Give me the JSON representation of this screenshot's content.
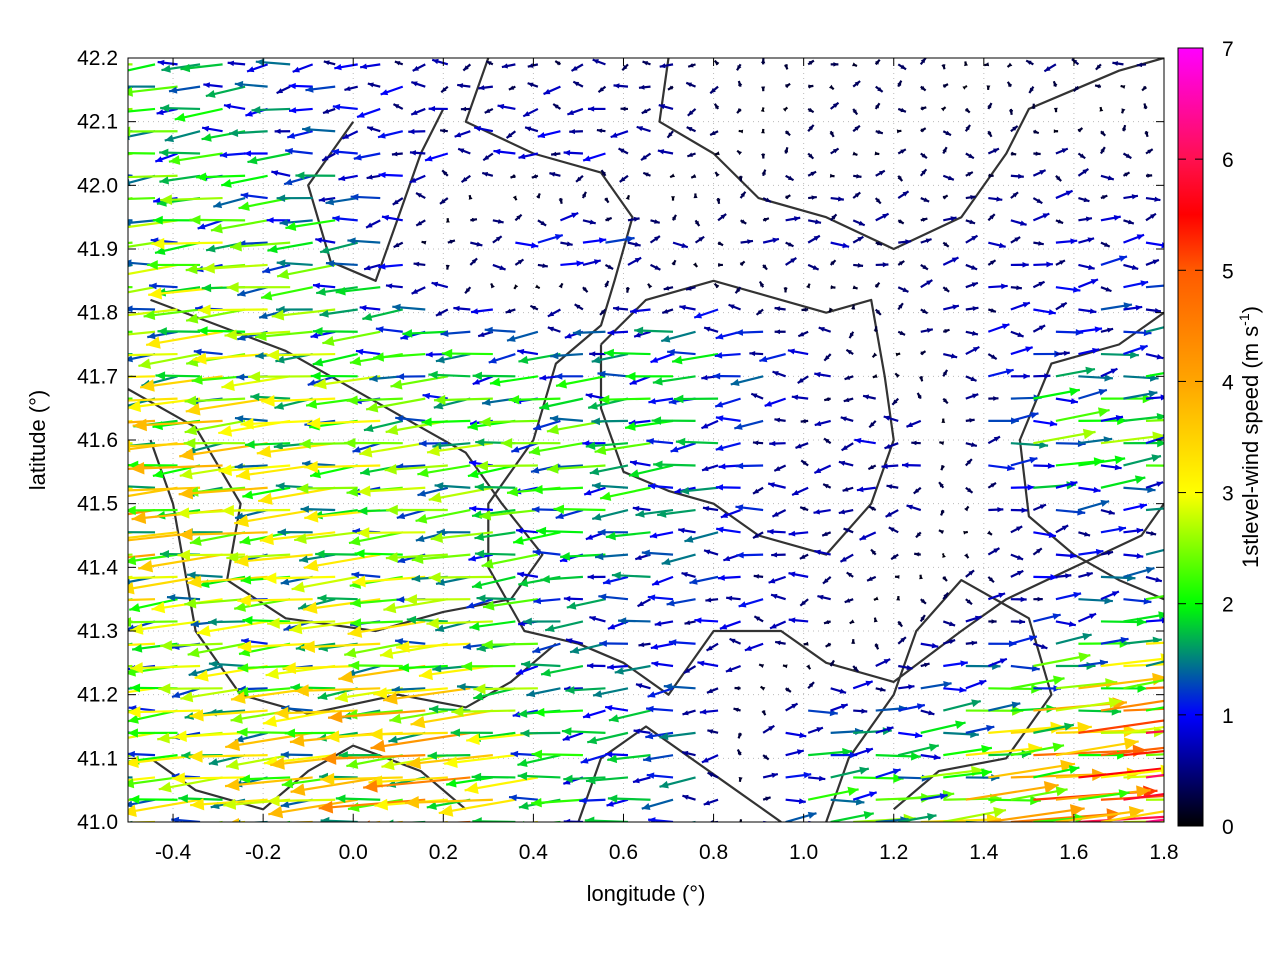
{
  "chart_data": {
    "type": "vector-field",
    "xlabel": "longitude (°)",
    "ylabel": "latitude (°)",
    "xlim": [
      -0.5,
      1.8
    ],
    "ylim": [
      41.0,
      42.2
    ],
    "xticks": [
      "-0.4",
      "-0.2",
      "0.0",
      "0.2",
      "0.4",
      "0.6",
      "0.8",
      "1.0",
      "1.2",
      "1.4",
      "1.6",
      "1.8"
    ],
    "yticks": [
      "41.0",
      "41.1",
      "41.2",
      "41.3",
      "41.4",
      "41.5",
      "41.6",
      "41.7",
      "41.8",
      "41.9",
      "42.0",
      "42.1",
      "42.2"
    ],
    "grid": true,
    "colorbar": {
      "label": "1stlevel-wind speed (m s",
      "label_sup": "-1",
      "label_end": ")",
      "range": [
        0,
        7
      ],
      "ticks": [
        "0",
        "1",
        "2",
        "3",
        "4",
        "5",
        "6",
        "7"
      ],
      "colors": [
        {
          "v": 0,
          "c": "#000000"
        },
        {
          "v": 1,
          "c": "#0000ff"
        },
        {
          "v": 1.5,
          "c": "#008080"
        },
        {
          "v": 2,
          "c": "#00ff00"
        },
        {
          "v": 3,
          "c": "#ffff00"
        },
        {
          "v": 4,
          "c": "#ffa500"
        },
        {
          "v": 5,
          "c": "#ff5a00"
        },
        {
          "v": 5.5,
          "c": "#ff0000"
        },
        {
          "v": 6,
          "c": "#ff1050"
        },
        {
          "v": 7,
          "c": "#ff00ff"
        }
      ]
    },
    "wind_u_coarse": {
      "lon": [
        -0.5,
        -0.25,
        0,
        0.25,
        0.5,
        0.75,
        1.0,
        1.25,
        1.5,
        1.75
      ],
      "lat": [
        41.0,
        41.15,
        41.3,
        41.45,
        41.6,
        41.75,
        41.9,
        42.05,
        42.2
      ],
      "u": [
        [
          -3,
          -3,
          -3.5,
          -4.5,
          -2,
          -1.5,
          2,
          3,
          5,
          6
        ],
        [
          -2.5,
          -3,
          -3.5,
          -4,
          -2,
          -1.5,
          1.5,
          1.5,
          4,
          5.5
        ],
        [
          -3,
          -2.5,
          -3,
          -3,
          -1.5,
          -1,
          -0.8,
          0.5,
          1,
          2.5
        ],
        [
          -4,
          -3.5,
          -3,
          -2.5,
          -2,
          -1.5,
          -0.8,
          -0.5,
          0.8,
          1
        ],
        [
          -4,
          -3.5,
          -3,
          -2.5,
          -2.5,
          -2,
          -0.5,
          -1,
          2.5,
          2.5
        ],
        [
          -2.5,
          -3,
          -2.5,
          -2,
          -1.5,
          -2,
          -1,
          0.5,
          1,
          1.5
        ],
        [
          -2.5,
          -2.8,
          -2,
          0.8,
          1.5,
          0.5,
          0.8,
          0.5,
          0.8,
          1
        ],
        [
          -2.5,
          -2,
          -1.2,
          -0.8,
          -1,
          -0.5,
          0.3,
          0.3,
          0.5,
          0.3
        ],
        [
          -2.5,
          -1.5,
          -1,
          -0.5,
          -0.5,
          -0.5,
          0.3,
          0.3,
          -0.5,
          -0.5
        ]
      ]
    },
    "contours": [
      [
        [
          -0.5,
          41.68
        ],
        [
          -0.35,
          41.62
        ],
        [
          -0.25,
          41.5
        ],
        [
          -0.28,
          41.38
        ],
        [
          -0.15,
          41.32
        ],
        [
          0.05,
          41.3
        ],
        [
          0.2,
          41.33
        ],
        [
          0.35,
          41.35
        ],
        [
          0.42,
          41.42
        ],
        [
          0.33,
          41.5
        ],
        [
          0.25,
          41.58
        ],
        [
          0.15,
          41.62
        ],
        [
          0.05,
          41.66
        ],
        [
          -0.05,
          41.7
        ],
        [
          -0.15,
          41.74
        ],
        [
          -0.3,
          41.78
        ],
        [
          -0.45,
          41.82
        ]
      ],
      [
        [
          -0.45,
          41.6
        ],
        [
          -0.4,
          41.5
        ],
        [
          -0.35,
          41.3
        ],
        [
          -0.25,
          41.2
        ],
        [
          -0.1,
          41.17
        ],
        [
          0.1,
          41.2
        ],
        [
          0.25,
          41.18
        ],
        [
          0.35,
          41.22
        ],
        [
          0.45,
          41.28
        ]
      ],
      [
        [
          0.3,
          42.2
        ],
        [
          0.25,
          42.1
        ],
        [
          0.4,
          42.05
        ],
        [
          0.55,
          42.02
        ],
        [
          0.62,
          41.95
        ],
        [
          0.58,
          41.85
        ],
        [
          0.55,
          41.78
        ],
        [
          0.45,
          41.72
        ],
        [
          0.4,
          41.6
        ],
        [
          0.3,
          41.5
        ],
        [
          0.3,
          41.4
        ],
        [
          0.38,
          41.3
        ],
        [
          0.5,
          41.28
        ],
        [
          0.6,
          41.25
        ],
        [
          0.7,
          41.2
        ],
        [
          0.8,
          41.3
        ],
        [
          0.95,
          41.3
        ],
        [
          1.05,
          41.25
        ],
        [
          1.2,
          41.22
        ],
        [
          1.35,
          41.3
        ],
        [
          1.45,
          41.35
        ],
        [
          1.6,
          41.4
        ],
        [
          1.75,
          41.45
        ],
        [
          1.8,
          41.5
        ]
      ],
      [
        [
          0.7,
          42.2
        ],
        [
          0.68,
          42.1
        ],
        [
          0.8,
          42.05
        ],
        [
          0.9,
          41.98
        ],
        [
          1.05,
          41.95
        ],
        [
          1.2,
          41.9
        ],
        [
          1.35,
          41.95
        ],
        [
          1.45,
          42.05
        ],
        [
          1.5,
          42.12
        ],
        [
          1.6,
          42.15
        ],
        [
          1.7,
          42.18
        ],
        [
          1.8,
          42.2
        ]
      ],
      [
        [
          0.55,
          41.75
        ],
        [
          0.65,
          41.82
        ],
        [
          0.8,
          41.85
        ],
        [
          0.95,
          41.82
        ],
        [
          1.05,
          41.8
        ],
        [
          1.15,
          41.82
        ],
        [
          1.18,
          41.7
        ],
        [
          1.2,
          41.6
        ],
        [
          1.15,
          41.5
        ],
        [
          1.05,
          41.42
        ],
        [
          0.9,
          41.45
        ],
        [
          0.8,
          41.5
        ],
        [
          0.7,
          41.52
        ],
        [
          0.6,
          41.55
        ],
        [
          0.55,
          41.65
        ],
        [
          0.55,
          41.75
        ]
      ],
      [
        [
          1.8,
          41.8
        ],
        [
          1.7,
          41.75
        ],
        [
          1.55,
          41.72
        ],
        [
          1.48,
          41.6
        ],
        [
          1.5,
          41.48
        ],
        [
          1.6,
          41.42
        ],
        [
          1.7,
          41.38
        ],
        [
          1.8,
          41.35
        ]
      ],
      [
        [
          0.5,
          41.0
        ],
        [
          0.55,
          41.1
        ],
        [
          0.65,
          41.15
        ],
        [
          0.75,
          41.1
        ],
        [
          0.85,
          41.05
        ],
        [
          0.95,
          41.0
        ]
      ],
      [
        [
          1.05,
          41.0
        ],
        [
          1.1,
          41.1
        ],
        [
          1.2,
          41.2
        ],
        [
          1.25,
          41.3
        ],
        [
          1.35,
          41.38
        ],
        [
          1.5,
          41.32
        ],
        [
          1.55,
          41.2
        ],
        [
          1.45,
          41.1
        ],
        [
          1.3,
          41.08
        ],
        [
          1.2,
          41.02
        ]
      ],
      [
        [
          -0.45,
          41.1
        ],
        [
          -0.35,
          41.05
        ],
        [
          -0.2,
          41.02
        ],
        [
          -0.1,
          41.08
        ],
        [
          0.0,
          41.12
        ],
        [
          0.15,
          41.08
        ],
        [
          0.25,
          41.02
        ]
      ],
      [
        [
          0.0,
          42.1
        ],
        [
          -0.1,
          42.0
        ],
        [
          -0.05,
          41.88
        ],
        [
          0.05,
          41.85
        ],
        [
          0.1,
          41.95
        ],
        [
          0.15,
          42.05
        ],
        [
          0.2,
          42.12
        ]
      ]
    ]
  }
}
